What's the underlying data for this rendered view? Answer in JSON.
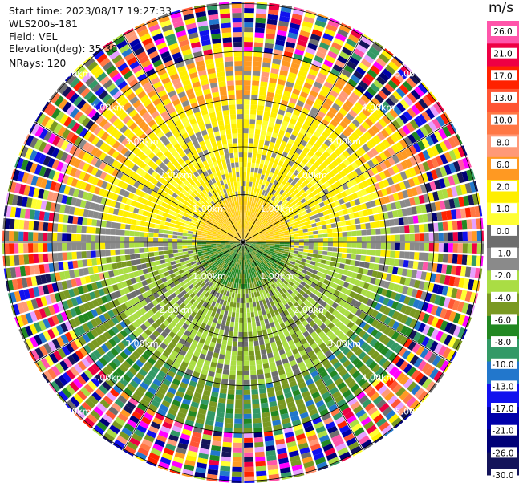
{
  "info": {
    "start_time": "Start time: 2023/08/17 19:27:33",
    "instrument": "WLS200s-181",
    "field": "Field: VEL",
    "elevation": "Elevation(deg): 35.30",
    "nrays": "NRays: 120"
  },
  "colorbar": {
    "unit": "m/s",
    "ticks": [
      "26.0",
      "21.0",
      "17.0",
      "13.0",
      "10.0",
      "8.0",
      "6.0",
      "2.0",
      "1.0",
      "0.0",
      "-1.0",
      "-2.0",
      "-4.0",
      "-6.0",
      "-8.0",
      "-10.0",
      "-13.0",
      "-17.0",
      "-21.0",
      "-26.0",
      "-30.0"
    ],
    "colors": [
      "#ff55aa",
      "#ee0044",
      "#ff2200",
      "#ff5533",
      "#ff7744",
      "#ff9977",
      "#ff9922",
      "#ffee00",
      "#ffff33",
      "#6e6e6e",
      "#8a8a8a",
      "#aadd44",
      "#7a9922",
      "#228822",
      "#339966",
      "#2277cc",
      "#1111ee",
      "#0000aa",
      "#000077",
      "#14145a"
    ]
  },
  "chart_data": {
    "type": "ppi-polar",
    "field": "VEL",
    "units": "m/s",
    "nrays": 120,
    "elevation_deg": 35.3,
    "range_rings_km": [
      1.0,
      2.0,
      3.0,
      4.0,
      5.0
    ],
    "range_ring_labels": [
      "1.00km",
      "2.00km",
      "3.00km",
      "4.00km",
      "5.00km"
    ],
    "spoke_angles_deg": [
      0,
      30,
      60,
      90,
      120,
      150,
      180,
      210,
      240,
      270,
      300,
      330
    ],
    "max_range_km": 5.1
  }
}
